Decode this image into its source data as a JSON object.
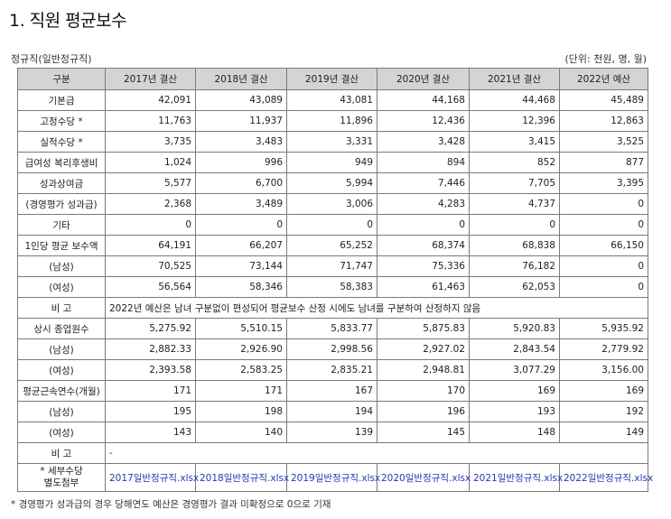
{
  "title": "1. 직원 평균보수",
  "subtitle_left": "정규직(일반정규직)",
  "subtitle_right": "(단위: 천원, 명, 월)",
  "table": {
    "header": [
      "구분",
      "2017년 결산",
      "2018년 결산",
      "2019년 결산",
      "2020년 결산",
      "2021년 결산",
      "2022년 예산"
    ],
    "rows": [
      {
        "label": "기본급",
        "values": [
          "42,091",
          "43,089",
          "43,081",
          "44,168",
          "44,468",
          "45,489"
        ]
      },
      {
        "label": "고정수당 *",
        "values": [
          "11,763",
          "11,937",
          "11,896",
          "12,436",
          "12,396",
          "12,863"
        ]
      },
      {
        "label": "실적수당 *",
        "values": [
          "3,735",
          "3,483",
          "3,331",
          "3,428",
          "3,415",
          "3,525"
        ]
      },
      {
        "label": "급여성 복리후생비",
        "values": [
          "1,024",
          "996",
          "949",
          "894",
          "852",
          "877"
        ]
      },
      {
        "label": "성과상여금",
        "values": [
          "5,577",
          "6,700",
          "5,994",
          "7,446",
          "7,705",
          "3,395"
        ]
      },
      {
        "label": "(경영평가 성과급)",
        "values": [
          "2,368",
          "3,489",
          "3,006",
          "4,283",
          "4,737",
          "0"
        ]
      },
      {
        "label": "기타",
        "values": [
          "0",
          "0",
          "0",
          "0",
          "0",
          "0"
        ]
      },
      {
        "label": "1인당 평균 보수액",
        "values": [
          "64,191",
          "66,207",
          "65,252",
          "68,374",
          "68,838",
          "66,150"
        ]
      },
      {
        "label": "(남성)",
        "values": [
          "70,525",
          "73,144",
          "71,747",
          "75,336",
          "76,182",
          "0"
        ]
      },
      {
        "label": "(여성)",
        "values": [
          "56,564",
          "58,346",
          "58,383",
          "61,463",
          "62,053",
          "0"
        ]
      }
    ],
    "note1": {
      "label": "비 고",
      "text": "2022년 예산은 남녀 구분없이 편성되어 평균보수 산정 시에도 남녀를 구분하여 산정하지 않음"
    },
    "rows2": [
      {
        "label": "상시 종업원수",
        "values": [
          "5,275.92",
          "5,510.15",
          "5,833.77",
          "5,875.83",
          "5,920.83",
          "5,935.92"
        ]
      },
      {
        "label": "(남성)",
        "values": [
          "2,882.33",
          "2,926.90",
          "2,998.56",
          "2,927.02",
          "2,843.54",
          "2,779.92"
        ]
      },
      {
        "label": "(여성)",
        "values": [
          "2,393.58",
          "2,583.25",
          "2,835.21",
          "2,948.81",
          "3,077.29",
          "3,156.00"
        ]
      },
      {
        "label": "평균근속연수(개월)",
        "values": [
          "171",
          "171",
          "167",
          "170",
          "169",
          "169"
        ]
      },
      {
        "label": "(남성)",
        "values": [
          "195",
          "198",
          "194",
          "196",
          "193",
          "192"
        ]
      },
      {
        "label": "(여성)",
        "values": [
          "143",
          "140",
          "139",
          "145",
          "148",
          "149"
        ]
      }
    ],
    "note2": {
      "label": "비 고",
      "text": "-"
    },
    "attach": {
      "label_line1": "* 세부수당",
      "label_line2": "별도첨부",
      "files": [
        "2017일반정규직.xlsx",
        "2018일반정규직.xlsx",
        "2019일반정규직.xlsx",
        "2020일반정규직.xlsx",
        "2021일반정규직.xlsx",
        "2022일반정규직.xlsx"
      ]
    }
  },
  "footnote": "* 경영평가 성과급의 경우 당해연도 예산은 경영평가 결과 미확정으로 0으로 기재"
}
